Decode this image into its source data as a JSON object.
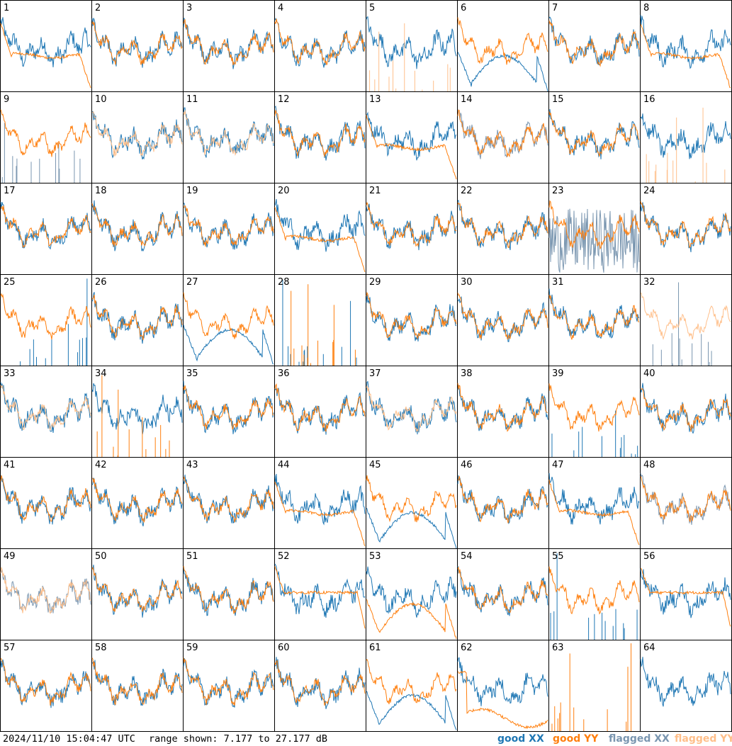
{
  "footer": {
    "timestamp": "2024/11/10 15:04:47 UTC",
    "range_text": "range shown: 7.177 to 27.177 dB"
  },
  "legend": [
    {
      "label": "good XX",
      "color": "#1f77b4"
    },
    {
      "label": "good YY",
      "color": "#ff7f0e"
    },
    {
      "label": "flagged XX",
      "color": "#7a96b0"
    },
    {
      "label": "flagged YY",
      "color": "#ffbf8a"
    }
  ],
  "chart_data": {
    "type": "line",
    "title": "",
    "layout": "8x8 grid of per-input spectra",
    "ylim": [
      7.177,
      27.177
    ],
    "yunit": "dB",
    "series_names": [
      "good XX",
      "good YY",
      "flagged XX",
      "flagged YY"
    ],
    "colors": {
      "good_xx": "#1f77b4",
      "good_yy": "#ff7f0e",
      "flagged_xx": "#7a96b0",
      "flagged_yy": "#ffbf8a"
    },
    "panels": [
      {
        "id": "1",
        "xx": "normal",
        "yy": "roll",
        "xx_flag": false,
        "yy_flag": false
      },
      {
        "id": "2",
        "xx": "normal",
        "yy": "normal",
        "xx_flag": false,
        "yy_flag": false
      },
      {
        "id": "3",
        "xx": "normal",
        "yy": "normal",
        "xx_flag": false,
        "yy_flag": false
      },
      {
        "id": "4",
        "xx": "normal",
        "yy": "normal",
        "xx_flag": false,
        "yy_flag": false
      },
      {
        "id": "5",
        "xx": "normal",
        "yy": "spikes",
        "xx_flag": false,
        "yy_flag": true
      },
      {
        "id": "6",
        "xx": "droop",
        "yy": "normal",
        "xx_flag": false,
        "yy_flag": false
      },
      {
        "id": "7",
        "xx": "normal",
        "yy": "normal",
        "xx_flag": false,
        "yy_flag": false
      },
      {
        "id": "8",
        "xx": "normal",
        "yy": "roll",
        "xx_flag": false,
        "yy_flag": false
      },
      {
        "id": "9",
        "xx": "spikes",
        "yy": "normal",
        "xx_flag": true,
        "yy_flag": false
      },
      {
        "id": "10",
        "xx": "normal",
        "yy": "normal",
        "xx_flag": false,
        "yy_flag": true
      },
      {
        "id": "11",
        "xx": "normal",
        "yy": "normal",
        "xx_flag": false,
        "yy_flag": true
      },
      {
        "id": "12",
        "xx": "normal",
        "yy": "normal",
        "xx_flag": false,
        "yy_flag": false
      },
      {
        "id": "13",
        "xx": "normal",
        "yy": "roll",
        "xx_flag": false,
        "yy_flag": false
      },
      {
        "id": "14",
        "xx": "normal",
        "yy": "normal",
        "xx_flag": true,
        "yy_flag": false
      },
      {
        "id": "15",
        "xx": "normal",
        "yy": "normal",
        "xx_flag": false,
        "yy_flag": false
      },
      {
        "id": "16",
        "xx": "normal",
        "yy": "spikes",
        "xx_flag": false,
        "yy_flag": true
      },
      {
        "id": "17",
        "xx": "normal",
        "yy": "normal",
        "xx_flag": false,
        "yy_flag": false
      },
      {
        "id": "18",
        "xx": "normal",
        "yy": "normal",
        "xx_flag": false,
        "yy_flag": false
      },
      {
        "id": "19",
        "xx": "normal",
        "yy": "normal",
        "xx_flag": false,
        "yy_flag": false
      },
      {
        "id": "20",
        "xx": "normal",
        "yy": "roll",
        "xx_flag": false,
        "yy_flag": false
      },
      {
        "id": "21",
        "xx": "normal",
        "yy": "normal",
        "xx_flag": false,
        "yy_flag": false
      },
      {
        "id": "22",
        "xx": "normal",
        "yy": "normal",
        "xx_flag": false,
        "yy_flag": false
      },
      {
        "id": "23",
        "xx": "noisy",
        "yy": "normal",
        "xx_flag": true,
        "yy_flag": false
      },
      {
        "id": "24",
        "xx": "normal",
        "yy": "normal",
        "xx_flag": false,
        "yy_flag": false
      },
      {
        "id": "25",
        "xx": "spikes",
        "yy": "normal",
        "xx_flag": false,
        "yy_flag": false
      },
      {
        "id": "26",
        "xx": "normal",
        "yy": "normal",
        "xx_flag": false,
        "yy_flag": false
      },
      {
        "id": "27",
        "xx": "droop",
        "yy": "normal",
        "xx_flag": false,
        "yy_flag": false
      },
      {
        "id": "28",
        "xx": "spikes",
        "yy": "spikes",
        "xx_flag": false,
        "yy_flag": false
      },
      {
        "id": "29",
        "xx": "normal",
        "yy": "normal",
        "xx_flag": false,
        "yy_flag": false
      },
      {
        "id": "30",
        "xx": "normal",
        "yy": "normal",
        "xx_flag": false,
        "yy_flag": false
      },
      {
        "id": "31",
        "xx": "normal",
        "yy": "normal",
        "xx_flag": false,
        "yy_flag": false
      },
      {
        "id": "32",
        "xx": "spikes",
        "yy": "normal",
        "xx_flag": true,
        "yy_flag": true
      },
      {
        "id": "33",
        "xx": "normal",
        "yy": "normal",
        "xx_flag": false,
        "yy_flag": true
      },
      {
        "id": "34",
        "xx": "normal",
        "yy": "spikes",
        "xx_flag": false,
        "yy_flag": false
      },
      {
        "id": "35",
        "xx": "normal",
        "yy": "normal",
        "xx_flag": false,
        "yy_flag": false
      },
      {
        "id": "36",
        "xx": "normal",
        "yy": "normal",
        "xx_flag": false,
        "yy_flag": false
      },
      {
        "id": "37",
        "xx": "normal",
        "yy": "normal",
        "xx_flag": false,
        "yy_flag": true
      },
      {
        "id": "38",
        "xx": "normal",
        "yy": "normal",
        "xx_flag": false,
        "yy_flag": false
      },
      {
        "id": "39",
        "xx": "spikes",
        "yy": "normal",
        "xx_flag": false,
        "yy_flag": false
      },
      {
        "id": "40",
        "xx": "normal",
        "yy": "normal",
        "xx_flag": false,
        "yy_flag": false
      },
      {
        "id": "41",
        "xx": "normal",
        "yy": "normal",
        "xx_flag": false,
        "yy_flag": false
      },
      {
        "id": "42",
        "xx": "normal",
        "yy": "normal",
        "xx_flag": false,
        "yy_flag": false
      },
      {
        "id": "43",
        "xx": "normal",
        "yy": "normal",
        "xx_flag": false,
        "yy_flag": false
      },
      {
        "id": "44",
        "xx": "normal",
        "yy": "roll",
        "xx_flag": false,
        "yy_flag": false
      },
      {
        "id": "45",
        "xx": "droop",
        "yy": "normal",
        "xx_flag": false,
        "yy_flag": false
      },
      {
        "id": "46",
        "xx": "normal",
        "yy": "normal",
        "xx_flag": false,
        "yy_flag": false
      },
      {
        "id": "47",
        "xx": "normal",
        "yy": "roll",
        "xx_flag": false,
        "yy_flag": false
      },
      {
        "id": "48",
        "xx": "normal",
        "yy": "normal",
        "xx_flag": true,
        "yy_flag": false
      },
      {
        "id": "49",
        "xx": "normal",
        "yy": "normal",
        "xx_flag": true,
        "yy_flag": true
      },
      {
        "id": "50",
        "xx": "normal",
        "yy": "normal",
        "xx_flag": false,
        "yy_flag": false
      },
      {
        "id": "51",
        "xx": "normal",
        "yy": "normal",
        "xx_flag": false,
        "yy_flag": false
      },
      {
        "id": "52",
        "xx": "normal",
        "yy": "flat",
        "xx_flag": false,
        "yy_flag": false
      },
      {
        "id": "53",
        "xx": "normal",
        "yy": "droop",
        "xx_flag": false,
        "yy_flag": false
      },
      {
        "id": "54",
        "xx": "normal",
        "yy": "normal",
        "xx_flag": false,
        "yy_flag": false
      },
      {
        "id": "55",
        "xx": "spikes",
        "yy": "normal",
        "xx_flag": false,
        "yy_flag": false
      },
      {
        "id": "56",
        "xx": "normal",
        "yy": "flat",
        "xx_flag": false,
        "yy_flag": false
      },
      {
        "id": "57",
        "xx": "normal",
        "yy": "normal",
        "xx_flag": false,
        "yy_flag": false
      },
      {
        "id": "58",
        "xx": "normal",
        "yy": "normal",
        "xx_flag": false,
        "yy_flag": false
      },
      {
        "id": "59",
        "xx": "normal",
        "yy": "normal",
        "xx_flag": false,
        "yy_flag": false
      },
      {
        "id": "60",
        "xx": "normal",
        "yy": "normal",
        "xx_flag": false,
        "yy_flag": false
      },
      {
        "id": "61",
        "xx": "droop",
        "yy": "normal",
        "xx_flag": false,
        "yy_flag": false
      },
      {
        "id": "62",
        "xx": "normal",
        "yy": "low",
        "xx_flag": false,
        "yy_flag": false
      },
      {
        "id": "63",
        "xx": "none",
        "yy": "spikes",
        "xx_flag": false,
        "yy_flag": false
      },
      {
        "id": "64",
        "xx": "normal",
        "yy": "none",
        "xx_flag": false,
        "yy_flag": false
      }
    ]
  }
}
